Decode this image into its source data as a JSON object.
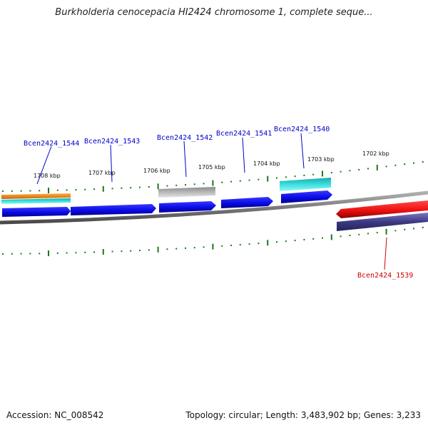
{
  "title": "Burkholderia cenocepacia HI2424 chromosome 1, complete seque...",
  "footer": {
    "accession": "Accession: NC_008542",
    "info": "Topology: circular; Length: 3,483,902 bp; Genes: 3,233"
  },
  "kbp_labels": [
    "1708 kbp",
    "1707 kbp",
    "1706 kbp",
    "1705 kbp",
    "1704 kbp",
    "1703 kbp",
    "1702 kbp"
  ],
  "gene_labels": [
    {
      "text": "Bcen2424_1544",
      "color": "#0000cc"
    },
    {
      "text": "Bcen2424_1543",
      "color": "#0000cc"
    },
    {
      "text": "Bcen2424_1542",
      "color": "#0000cc"
    },
    {
      "text": "Bcen2424_1541",
      "color": "#0000cc"
    },
    {
      "text": "Bcen2424_1540",
      "color": "#0000cc"
    },
    {
      "text": "Bcen2424_1539",
      "color": "#cc0000"
    }
  ],
  "colors": {
    "forward_cds": "#0a0ae6",
    "reverse_cds": "#ee1111",
    "orange_feature": "#f08a10",
    "cyan_feature": "#22c6c6",
    "grey_feature": "#a8a8a8",
    "purple_feature": "#3c3a82",
    "backbone": "#808080",
    "tick": "#1a7a1a"
  }
}
